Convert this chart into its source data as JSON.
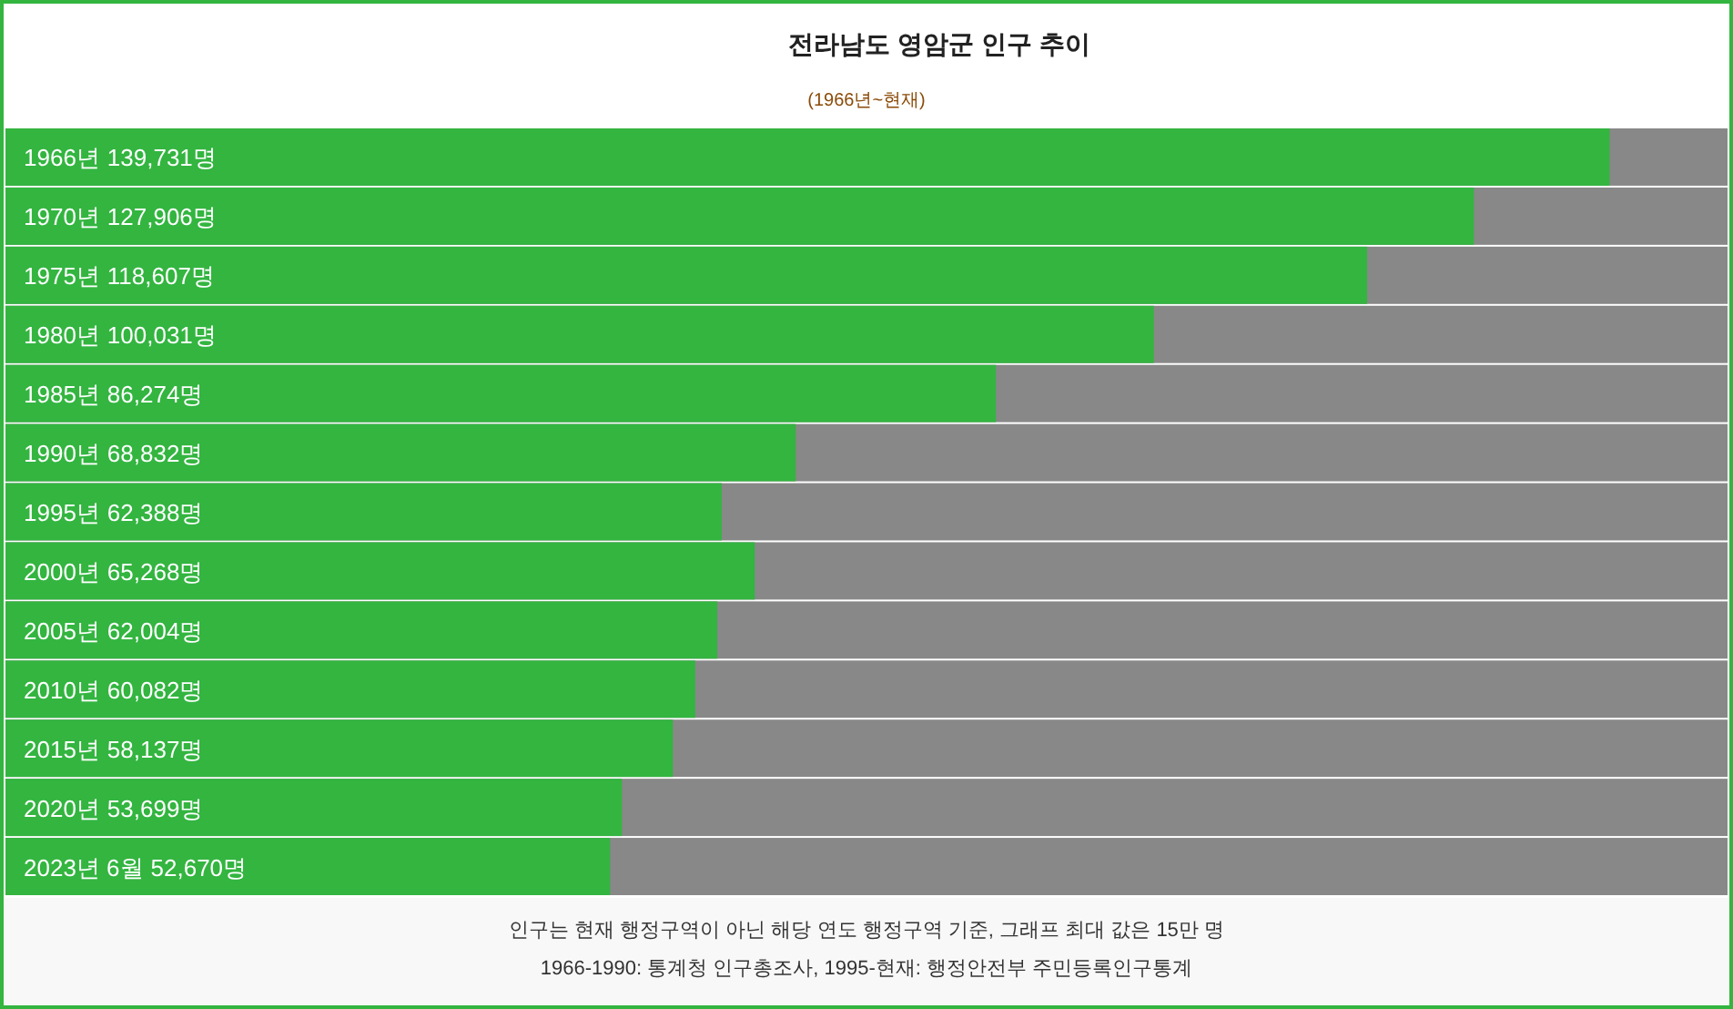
{
  "chart_data": {
    "type": "bar",
    "orientation": "horizontal",
    "title": "전라남도 영암군 인구 추이",
    "subtitle": "(1966년~현재)",
    "categories": [
      "1966년",
      "1970년",
      "1975년",
      "1980년",
      "1985년",
      "1990년",
      "1995년",
      "2000년",
      "2005년",
      "2010년",
      "2015년",
      "2020년",
      "2023년 6월"
    ],
    "values": [
      139731,
      127906,
      118607,
      100031,
      86274,
      68832,
      62388,
      65268,
      62004,
      60082,
      58137,
      53699,
      52670
    ],
    "value_labels": [
      "139,731명",
      "127,906명",
      "118,607명",
      "100,031명",
      "86,274명",
      "68,832명",
      "62,388명",
      "65,268명",
      "62,004명",
      "60,082명",
      "58,137명",
      "53,699명",
      "52,670명"
    ],
    "color": "#33b540",
    "xlim": [
      0,
      150000
    ],
    "annotations": [
      "인구는 현재 행정구역이 아닌 해당 연도 행정구역 기준, 그래프 최대 값은 15만 명",
      "1966-1990: 통계청 인구총조사, 1995-현재: 행정안전부 주민등록인구통계"
    ]
  }
}
